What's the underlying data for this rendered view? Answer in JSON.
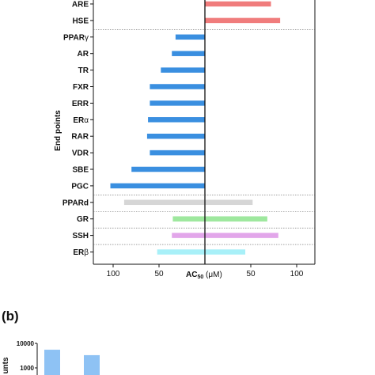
{
  "chart_data": [
    {
      "type": "bar",
      "orientation": "horizontal-diverging",
      "categories": [
        "ARE",
        "HSE",
        "PPARγ",
        "AR",
        "TR",
        "FXR",
        "ERR",
        "ERα",
        "RAR",
        "VDR",
        "SBE",
        "PGC",
        "PPARd",
        "GR",
        "SSH",
        "ERβ"
      ],
      "category_labels": [
        "ARE",
        "HSE",
        "PPAR",
        "AR",
        "TR",
        "FXR",
        "ERR",
        "ER",
        "RAR",
        "VDR",
        "SBE",
        "PGC",
        "PPARd",
        "GR",
        "SSH",
        "ER"
      ],
      "category_subscripts": [
        "",
        "",
        "γ",
        "",
        "",
        "",
        "",
        "α",
        "",
        "",
        "",
        "",
        "",
        "",
        "",
        "β"
      ],
      "series": [
        {
          "side": "left",
          "values": [
            null,
            null,
            32,
            36,
            48,
            60,
            60,
            62,
            63,
            60,
            80,
            103,
            88,
            35,
            36,
            52
          ]
        },
        {
          "side": "right",
          "values": [
            72,
            82,
            null,
            null,
            null,
            null,
            null,
            null,
            null,
            null,
            null,
            null,
            52,
            68,
            80,
            44
          ]
        }
      ],
      "bar_colors": [
        "#ffffff",
        "#f07c7c",
        "#3a8fe0",
        "#3a8fe0",
        "#3a8fe0",
        "#3a8fe0",
        "#3a8fe0",
        "#3a8fe0",
        "#3a8fe0",
        "#3a8fe0",
        "#3a8fe0",
        "#3a8fe0",
        "#d6d6d6",
        "#9ee89e",
        "#e2a6ea",
        "#a8f0f8"
      ],
      "first_bar_color": "#f07c7c",
      "xlim": [
        -120,
        120
      ],
      "xticks": [
        -100,
        -50,
        50,
        100
      ],
      "xtick_labels": [
        "100",
        "50",
        "50",
        "100"
      ],
      "xlabel": "AC",
      "xlabel_sub": "50",
      "xlabel_unit": " (μM)",
      "ylabel": "End points",
      "group_separators_after": [
        1,
        11,
        12,
        13,
        14
      ]
    },
    {
      "type": "bar",
      "panel_label": "(b)",
      "yscale": "log",
      "ytick_labels": [
        "10000",
        "1000"
      ],
      "ylabel_partial": "unts",
      "values": [
        5500,
        3300
      ],
      "color": "#8ec2f4"
    }
  ]
}
